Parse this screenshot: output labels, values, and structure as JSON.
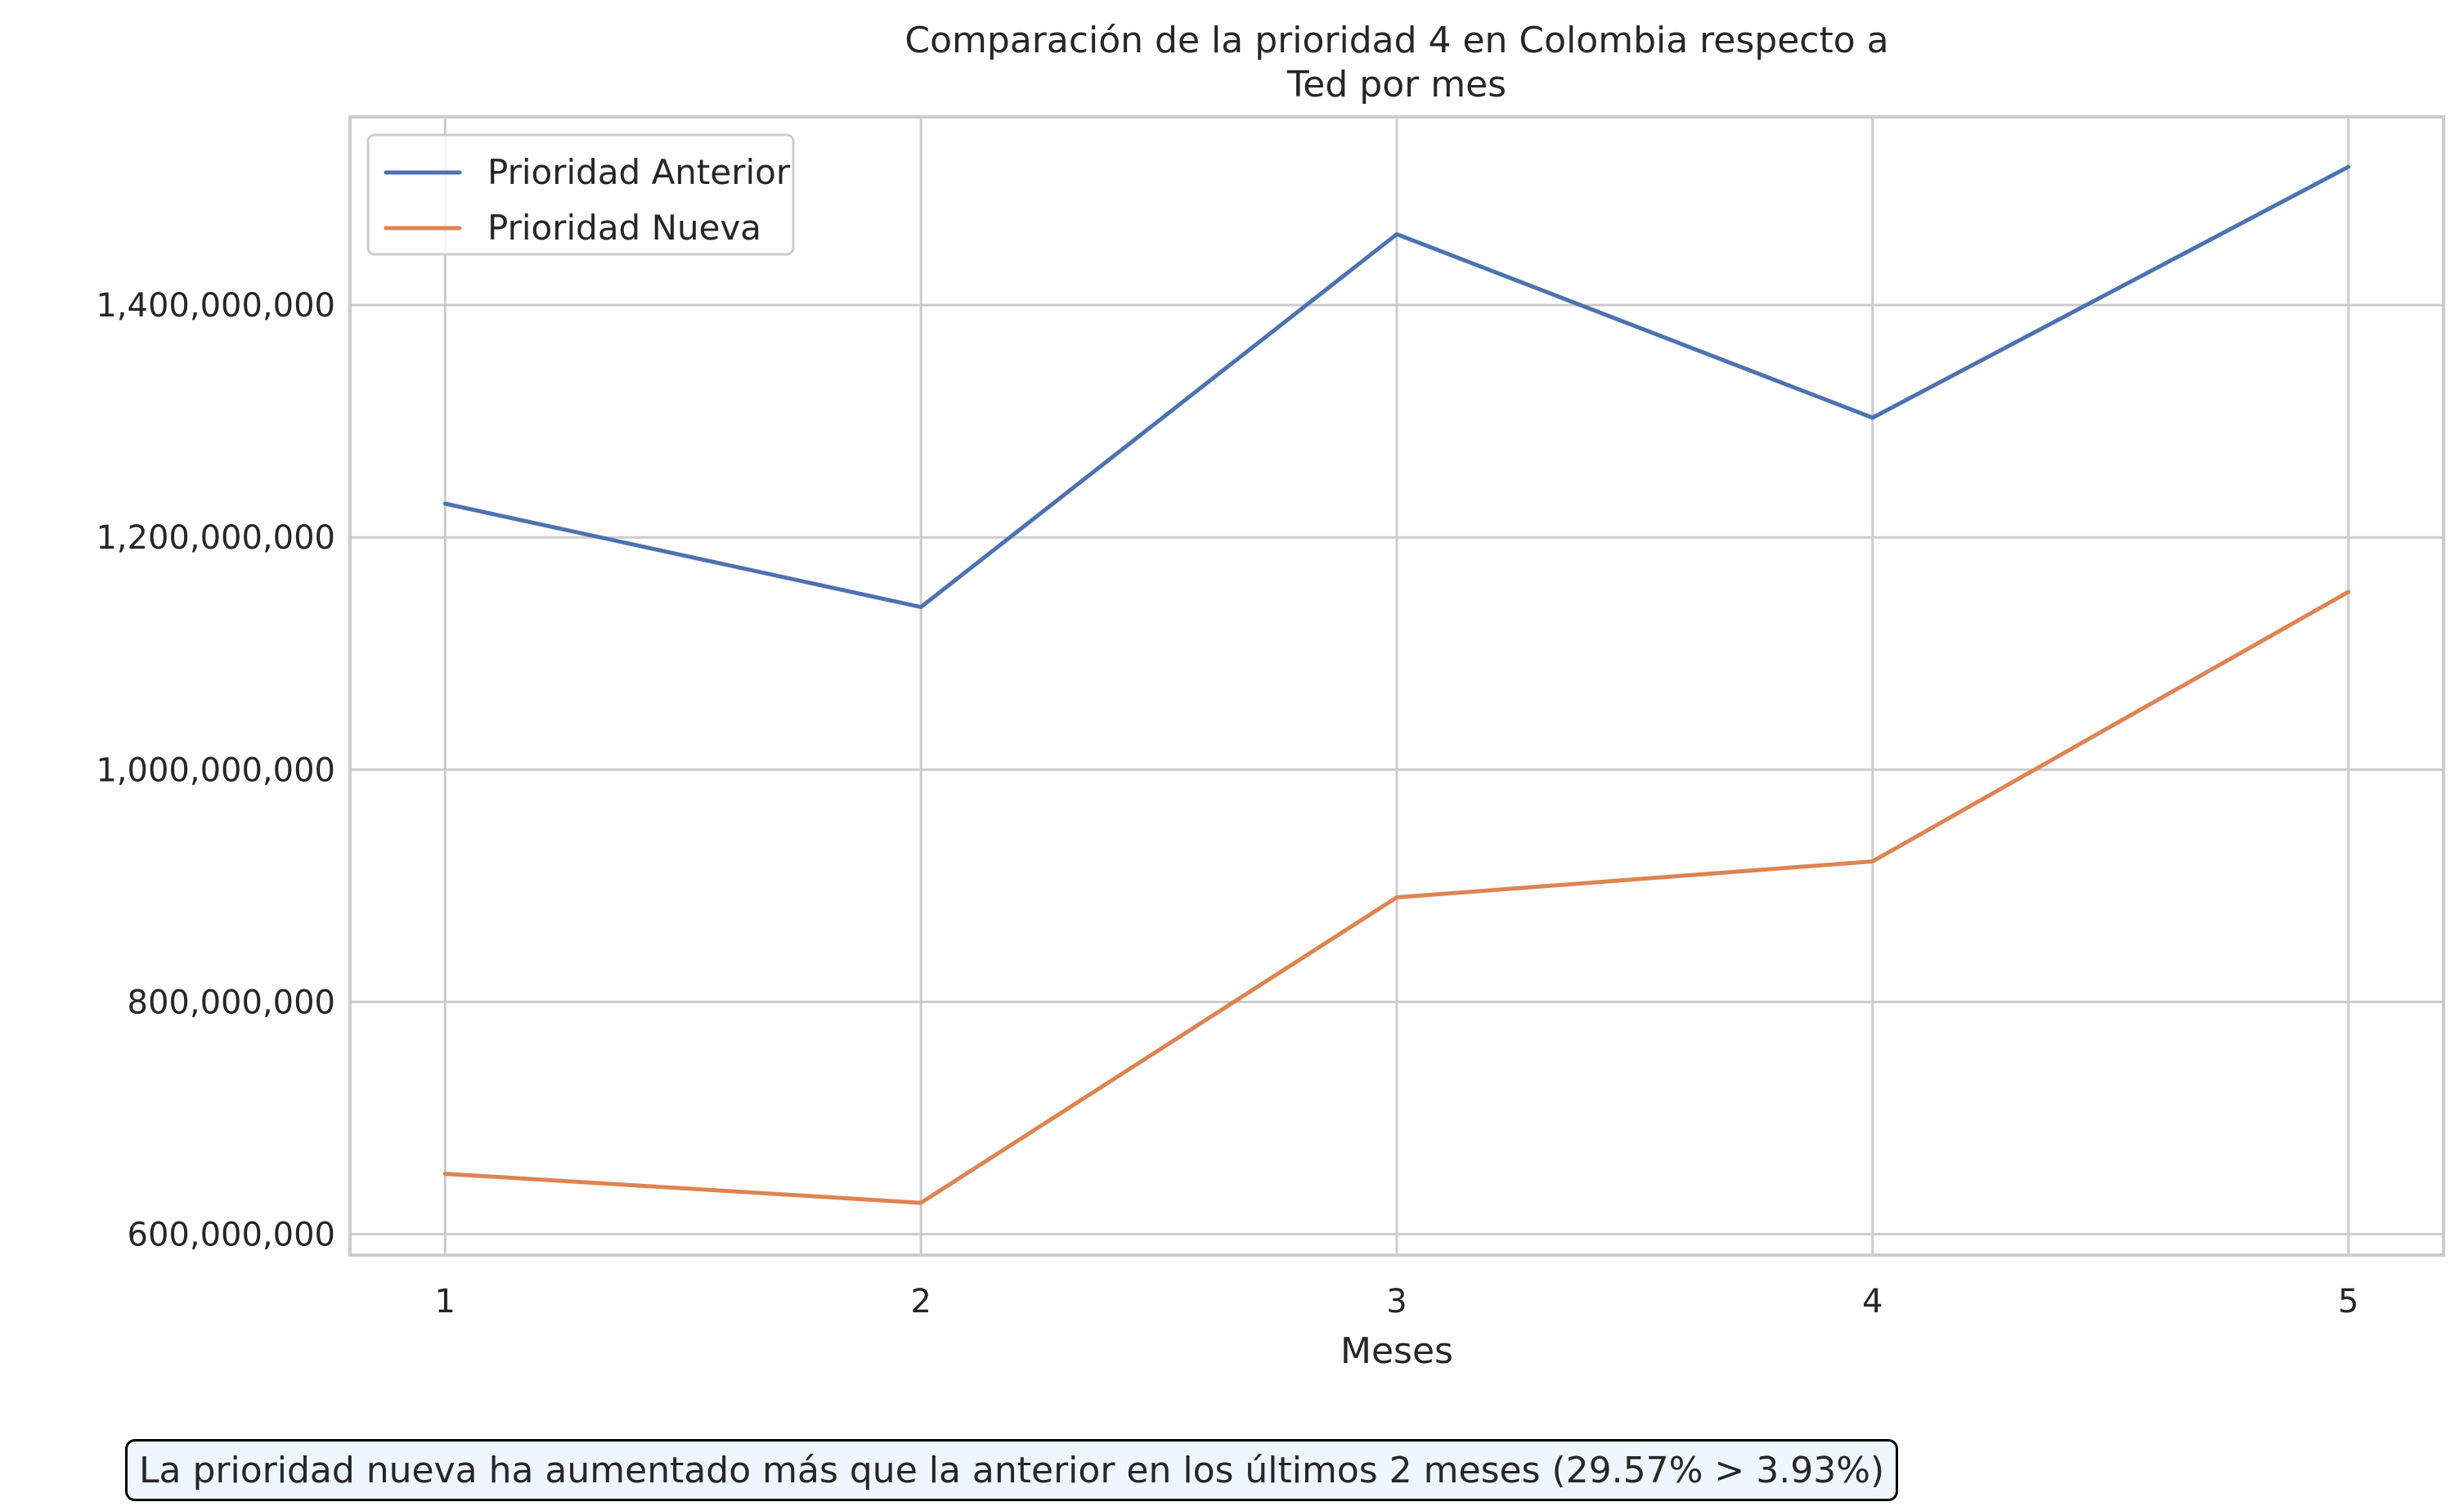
{
  "chart_data": {
    "type": "line",
    "title": "Comparación de la prioridad 4 en Colombia respecto a\nTed por mes",
    "xlabel": "Meses",
    "ylabel": "",
    "x": [
      1,
      2,
      3,
      4,
      5
    ],
    "x_tick_labels": [
      "1",
      "2",
      "3",
      "4",
      "5"
    ],
    "xlim": [
      0.8,
      5.2
    ],
    "ylim": [
      582000000,
      1562000000
    ],
    "y_ticks": [
      600000000,
      800000000,
      1000000000,
      1200000000,
      1400000000
    ],
    "y_tick_labels": [
      "600,000,000",
      "800,000,000",
      "1,000,000,000",
      "1,200,000,000",
      "1,400,000,000"
    ],
    "grid": true,
    "legend_position": "top-left",
    "series": [
      {
        "name": "Prioridad Anterior",
        "color": "#4c72b0",
        "values": [
          1229000000,
          1140000000,
          1461000000,
          1303000000,
          1519000000
        ]
      },
      {
        "name": "Prioridad Nueva",
        "color": "#dd8452",
        "values": [
          652000000,
          627000000,
          890000000,
          921000000,
          1153000000
        ]
      }
    ],
    "annotation": "La prioridad nueva ha aumentado más que la anterior en los últimos 2 meses (29.57% > 3.93%)"
  }
}
